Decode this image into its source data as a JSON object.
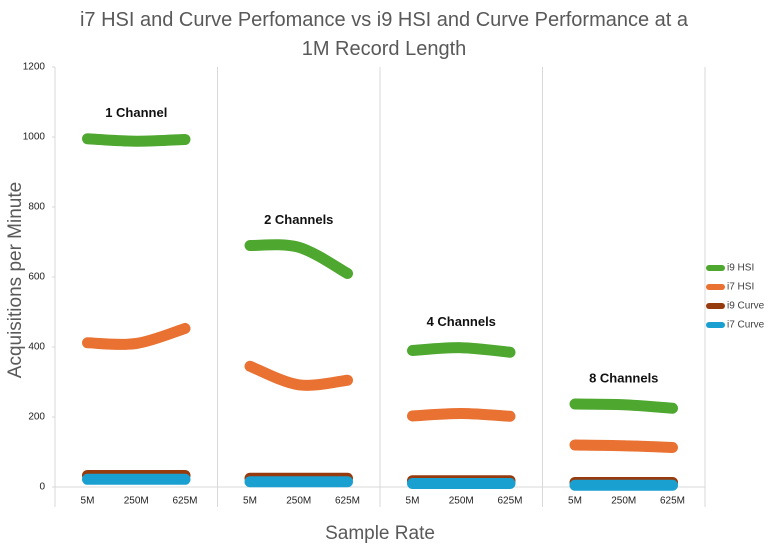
{
  "chart_data": {
    "type": "line",
    "title": "i7 HSI and Curve Perfomance vs i9 HSI and Curve Performance at a 1M Record Length",
    "x_label": "Sample Rate",
    "y_label": "Acquisitions per Minute",
    "group_labels": [
      "1 Channel",
      "2 Channels",
      "4 Channels",
      "8 Channels"
    ],
    "categories": [
      "5M",
      "250M",
      "625M",
      "5M",
      "250M",
      "625M",
      "5M",
      "250M",
      "625M",
      "5M",
      "250M",
      "625M"
    ],
    "series": [
      {
        "name": "i9 HSI",
        "color": "#4ea72e",
        "values": [
          995,
          988,
          993,
          690,
          685,
          610,
          390,
          398,
          385,
          237,
          235,
          225
        ]
      },
      {
        "name": "i7 HSI",
        "color": "#e97132",
        "values": [
          412,
          410,
          453,
          345,
          292,
          305,
          203,
          210,
          202,
          120,
          118,
          113
        ]
      },
      {
        "name": "i9 Curve",
        "color": "#963b0e",
        "values": [
          33,
          33,
          33,
          25,
          25,
          25,
          18,
          18,
          18,
          13,
          13,
          13
        ]
      },
      {
        "name": "i7 Curve",
        "color": "#1aa0d0",
        "values": [
          22,
          22,
          22,
          15,
          15,
          15,
          10,
          10,
          10,
          5,
          5,
          5
        ]
      }
    ],
    "ylim": [
      0,
      1200
    ],
    "yticks": [
      0,
      200,
      400,
      600,
      800,
      1000,
      1200
    ],
    "legend": "right"
  }
}
